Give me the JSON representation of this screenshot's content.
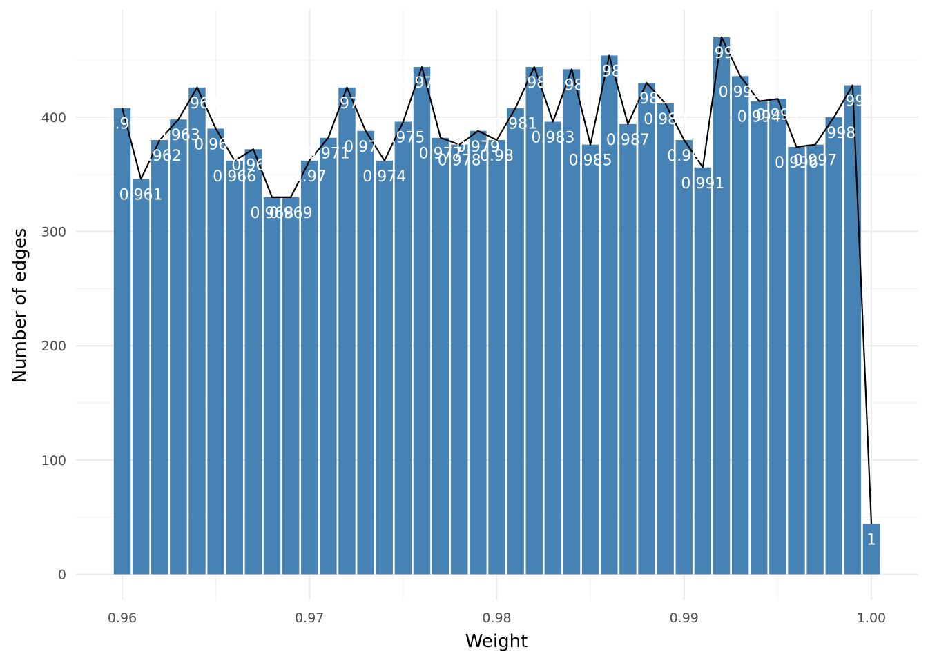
{
  "chart_data": {
    "type": "bar",
    "xlabel": "Weight",
    "ylabel": "Number of edges",
    "xlim": [
      0.9575,
      1.0025
    ],
    "ylim": [
      0,
      476
    ],
    "x_ticks": [
      0.96,
      0.97,
      0.98,
      0.99,
      1.0
    ],
    "x_tick_labels": [
      "0.96",
      "0.97",
      "0.98",
      "0.99",
      "1.00"
    ],
    "y_ticks": [
      0,
      100,
      200,
      300,
      400
    ],
    "y_tick_labels": [
      "0",
      "100",
      "200",
      "300",
      "400"
    ],
    "grid": true,
    "legend": "none",
    "bar_color": "#4682B4",
    "line_color": "#000000",
    "bin_width": 0.001,
    "points": [
      {
        "x": 0.96,
        "y": 408,
        "label": "0.96"
      },
      {
        "x": 0.961,
        "y": 346,
        "label": "0.961"
      },
      {
        "x": 0.962,
        "y": 380,
        "label": "0.962"
      },
      {
        "x": 0.963,
        "y": 398,
        "label": "0.963"
      },
      {
        "x": 0.964,
        "y": 426,
        "label": "0.964"
      },
      {
        "x": 0.965,
        "y": 390,
        "label": "0.965"
      },
      {
        "x": 0.966,
        "y": 362,
        "label": "0.966"
      },
      {
        "x": 0.967,
        "y": 372,
        "label": "0.967"
      },
      {
        "x": 0.968,
        "y": 330,
        "label": "0.968"
      },
      {
        "x": 0.969,
        "y": 330,
        "label": "0.969"
      },
      {
        "x": 0.97,
        "y": 362,
        "label": "0.97"
      },
      {
        "x": 0.971,
        "y": 382,
        "label": "0.971"
      },
      {
        "x": 0.972,
        "y": 426,
        "label": "0.972"
      },
      {
        "x": 0.973,
        "y": 388,
        "label": "0.973"
      },
      {
        "x": 0.974,
        "y": 362,
        "label": "0.974"
      },
      {
        "x": 0.975,
        "y": 396,
        "label": "0.975"
      },
      {
        "x": 0.976,
        "y": 444,
        "label": "0.976"
      },
      {
        "x": 0.977,
        "y": 382,
        "label": "0.977"
      },
      {
        "x": 0.978,
        "y": 376,
        "label": "0.978"
      },
      {
        "x": 0.979,
        "y": 388,
        "label": "0.979"
      },
      {
        "x": 0.98,
        "y": 380,
        "label": "0.98"
      },
      {
        "x": 0.981,
        "y": 408,
        "label": "0.981"
      },
      {
        "x": 0.982,
        "y": 444,
        "label": "0.982"
      },
      {
        "x": 0.983,
        "y": 396,
        "label": "0.983"
      },
      {
        "x": 0.984,
        "y": 442,
        "label": "0.984"
      },
      {
        "x": 0.985,
        "y": 376,
        "label": "0.985"
      },
      {
        "x": 0.986,
        "y": 454,
        "label": "0.986"
      },
      {
        "x": 0.987,
        "y": 394,
        "label": "0.987"
      },
      {
        "x": 0.988,
        "y": 430,
        "label": "0.988"
      },
      {
        "x": 0.989,
        "y": 412,
        "label": "0.989"
      },
      {
        "x": 0.99,
        "y": 380,
        "label": "0.99"
      },
      {
        "x": 0.991,
        "y": 356,
        "label": "0.991"
      },
      {
        "x": 0.992,
        "y": 470,
        "label": "0.992"
      },
      {
        "x": 0.993,
        "y": 436,
        "label": "0.993"
      },
      {
        "x": 0.994,
        "y": 414,
        "label": "0.994"
      },
      {
        "x": 0.995,
        "y": 416,
        "label": "0.995"
      },
      {
        "x": 0.996,
        "y": 374,
        "label": "0.996"
      },
      {
        "x": 0.997,
        "y": 376,
        "label": "0.997"
      },
      {
        "x": 0.998,
        "y": 400,
        "label": "0.998"
      },
      {
        "x": 0.999,
        "y": 428,
        "label": "0.999"
      },
      {
        "x": 1.0,
        "y": 44,
        "label": "1"
      }
    ]
  }
}
